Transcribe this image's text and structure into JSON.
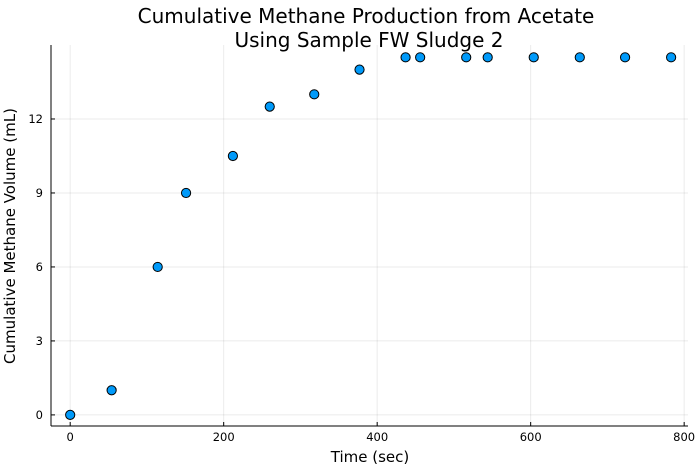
{
  "chart_data": {
    "type": "scatter",
    "title_lines": [
      "Cumulative Methane Production from Acetate",
      "Using Sample FW Sludge 2"
    ],
    "xlabel": "Time (sec)",
    "ylabel": "Cumulative Methane Volume (mL)",
    "xlim": [
      -25,
      805
    ],
    "ylim": [
      -0.45,
      15
    ],
    "xticks": [
      0,
      200,
      400,
      600,
      800
    ],
    "yticks": [
      0,
      3,
      6,
      9,
      12
    ],
    "grid": true,
    "legend": "none",
    "marker_color": "#009AFA",
    "points": [
      {
        "x": 0,
        "y": 0
      },
      {
        "x": 54,
        "y": 1
      },
      {
        "x": 114,
        "y": 6
      },
      {
        "x": 151,
        "y": 9
      },
      {
        "x": 212,
        "y": 10.5
      },
      {
        "x": 260,
        "y": 12.5
      },
      {
        "x": 318,
        "y": 13
      },
      {
        "x": 377,
        "y": 14
      },
      {
        "x": 437,
        "y": 14.5
      },
      {
        "x": 456,
        "y": 14.5
      },
      {
        "x": 516,
        "y": 14.5
      },
      {
        "x": 544,
        "y": 14.5
      },
      {
        "x": 604,
        "y": 14.5
      },
      {
        "x": 664,
        "y": 14.5
      },
      {
        "x": 723,
        "y": 14.5
      },
      {
        "x": 783,
        "y": 14.5
      }
    ]
  }
}
